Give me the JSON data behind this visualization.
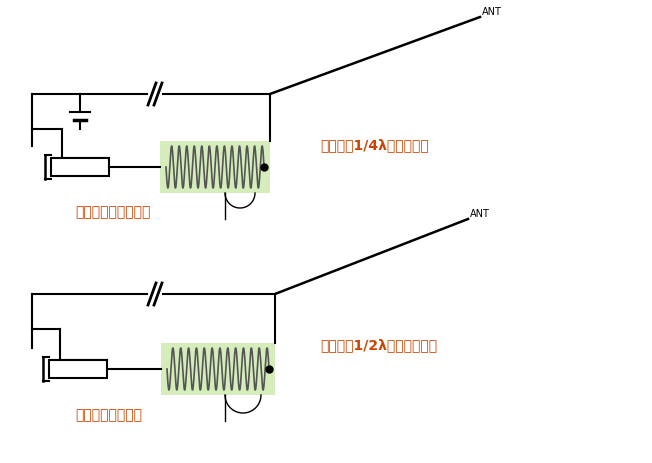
{
  "bg_color": "#ffffff",
  "line_color": "#000000",
  "text_color_orange": "#cc4400",
  "coil_bg_color": "#d4edba",
  "diagram1": {
    "label": "アンテナ・チューナ",
    "ant_label": "アンテナ1/4λ以上の長さ",
    "ant_text": "ANT"
  },
  "diagram2": {
    "label": "電圧給電アンテナ",
    "ant_label": "アンテナ1/2λ共振した長さ",
    "ant_text": "ANT"
  }
}
